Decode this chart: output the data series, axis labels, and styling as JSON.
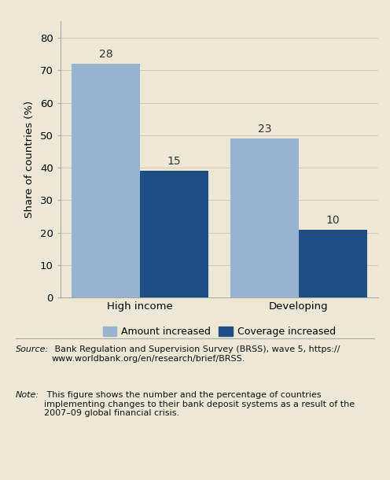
{
  "categories": [
    "High income",
    "Developing"
  ],
  "series": [
    {
      "name": "Amount increased",
      "values": [
        72,
        49
      ],
      "labels": [
        28,
        23
      ],
      "color": "#97b3d0"
    },
    {
      "name": "Coverage increased",
      "values": [
        39,
        21
      ],
      "labels": [
        15,
        10
      ],
      "color": "#1f4f82"
    }
  ],
  "ylabel": "Share of countries (%)",
  "ylim": [
    0,
    85
  ],
  "yticks": [
    0,
    10,
    20,
    30,
    40,
    50,
    60,
    70,
    80
  ],
  "bar_width": 0.3,
  "background_color": "#ede8d5",
  "plot_bg_color": "#ede8d5",
  "label_fontsize": 10,
  "axis_fontsize": 9.5,
  "legend_fontsize": 9,
  "source_label": "Source:",
  "source_body": " Bank Regulation and Supervision Survey (BRSS), wave 5, https://\nwww.worldbank.org/en/research/brief/BRSS.",
  "note_label": "Note:",
  "note_body": " This figure shows the number and the percentage of countries\nimplementing changes to their bank deposit systems as a result of the\n2007–09 global financial crisis."
}
